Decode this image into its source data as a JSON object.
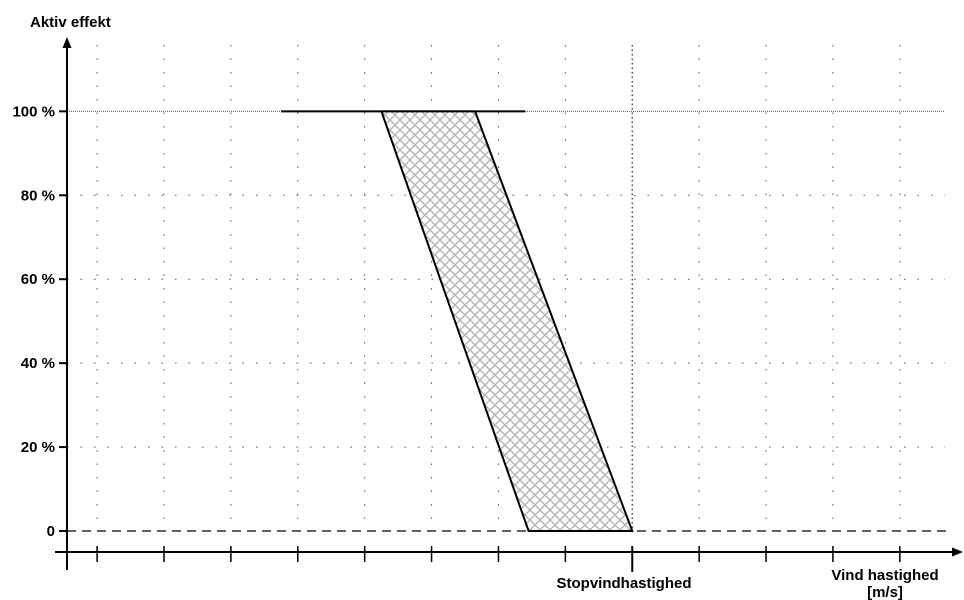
{
  "chart_data": {
    "type": "area",
    "ylabel": "Aktiv effekt",
    "xlabel_lines": [
      "Vind hastighed",
      "[m/s]"
    ],
    "x_annotation": "Stopvindhastighed",
    "y_ticks": [
      {
        "value": 0,
        "label": "0"
      },
      {
        "value": 20,
        "label": "20 %"
      },
      {
        "value": 40,
        "label": "40 %"
      },
      {
        "value": 60,
        "label": "60 %"
      },
      {
        "value": 80,
        "label": "80 %"
      },
      {
        "value": 100,
        "label": "100 %"
      }
    ],
    "ylim": [
      -5,
      117
    ],
    "xlim": [
      -0.2,
      13
    ],
    "x_grid": [
      0.25,
      1.25,
      2.25,
      3.25,
      4.25,
      5.25,
      6.25,
      7.25,
      8.25,
      9.25,
      10.25,
      11.25,
      12.25
    ],
    "x_ticks": [
      0.25,
      1.25,
      2.25,
      3.25,
      4.25,
      5.25,
      6.25,
      7.25,
      8.25,
      9.25,
      10.25,
      11.25,
      12.25
    ],
    "stop_wind_x": 8.25,
    "grid": true,
    "series": [
      {
        "role": "flat-power-line",
        "points": [
          [
            3,
            100
          ],
          [
            6.65,
            100
          ]
        ]
      },
      {
        "role": "hatched-band",
        "fill": "crosshatch",
        "points": [
          [
            4.5,
            100
          ],
          [
            5.9,
            100
          ],
          [
            8.25,
            0
          ],
          [
            6.7,
            0
          ]
        ]
      },
      {
        "role": "zero-baseline",
        "style": "dashed",
        "points": [
          [
            -0.2,
            0
          ],
          [
            13,
            0
          ]
        ]
      }
    ]
  },
  "colors": {
    "axis": "#000000",
    "grid": "#555555",
    "hatch": "#b4b4b4",
    "line": "#000000"
  }
}
